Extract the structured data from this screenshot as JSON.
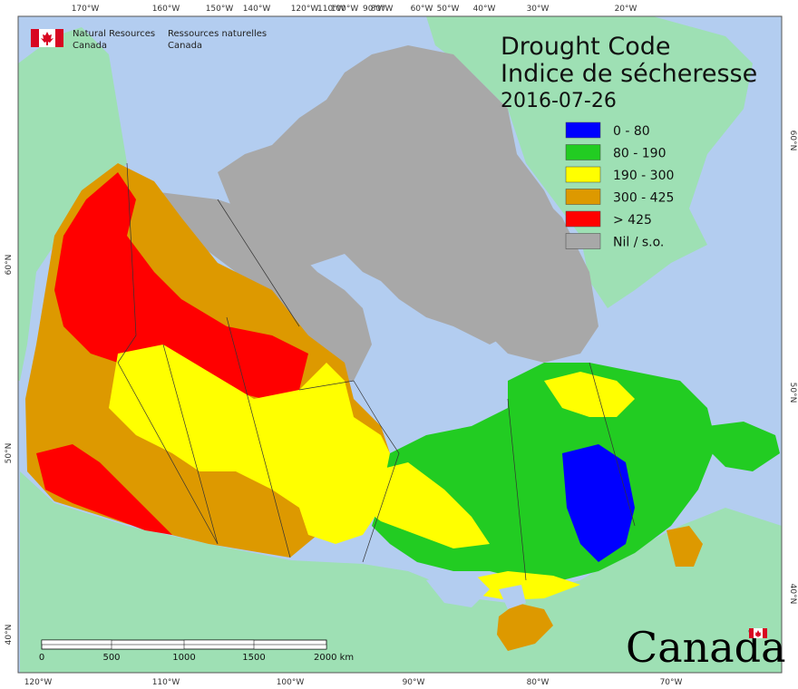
{
  "title": {
    "line1": "Drought Code",
    "line2": "Indice de sécheresse",
    "date": "2016-07-26"
  },
  "agency": {
    "en_line1": "Natural Resources",
    "en_line2": "Canada",
    "fr_line1": "Ressources naturelles",
    "fr_line2": "Canada"
  },
  "wordmark": "Canada",
  "legend": [
    {
      "label": "0 - 80",
      "color": "#0000ff"
    },
    {
      "label": "80 - 190",
      "color": "#22cc22"
    },
    {
      "label": "190 - 300",
      "color": "#ffff00"
    },
    {
      "label": "300 - 425",
      "color": "#dd9900"
    },
    {
      "label": "> 425",
      "color": "#ff0000"
    },
    {
      "label": "Nil / s.o.",
      "color": "#a8a8a8"
    }
  ],
  "scale_bar": {
    "labels": [
      "0",
      "500",
      "1000",
      "1500",
      "2000 km"
    ]
  },
  "graticule": {
    "top": [
      "170°W",
      "160°W",
      "150°W",
      "140°W",
      "120°W",
      "110°W",
      "100°W",
      "90°W",
      "80°W",
      "60°W",
      "50°W",
      "40°W",
      "30°W",
      "20°W"
    ],
    "bottom": [
      "120°W",
      "110°W",
      "100°W",
      "90°W",
      "80°W",
      "70°W"
    ],
    "left": [
      "60°N",
      "50°N",
      "40°N"
    ],
    "right": [
      "60°N",
      "50°N",
      "40°N"
    ]
  },
  "colors": {
    "ocean": "#b3cdf0",
    "other_land": "#9ee0b4",
    "nil": "#a8a8a8",
    "frame": "#555555"
  }
}
